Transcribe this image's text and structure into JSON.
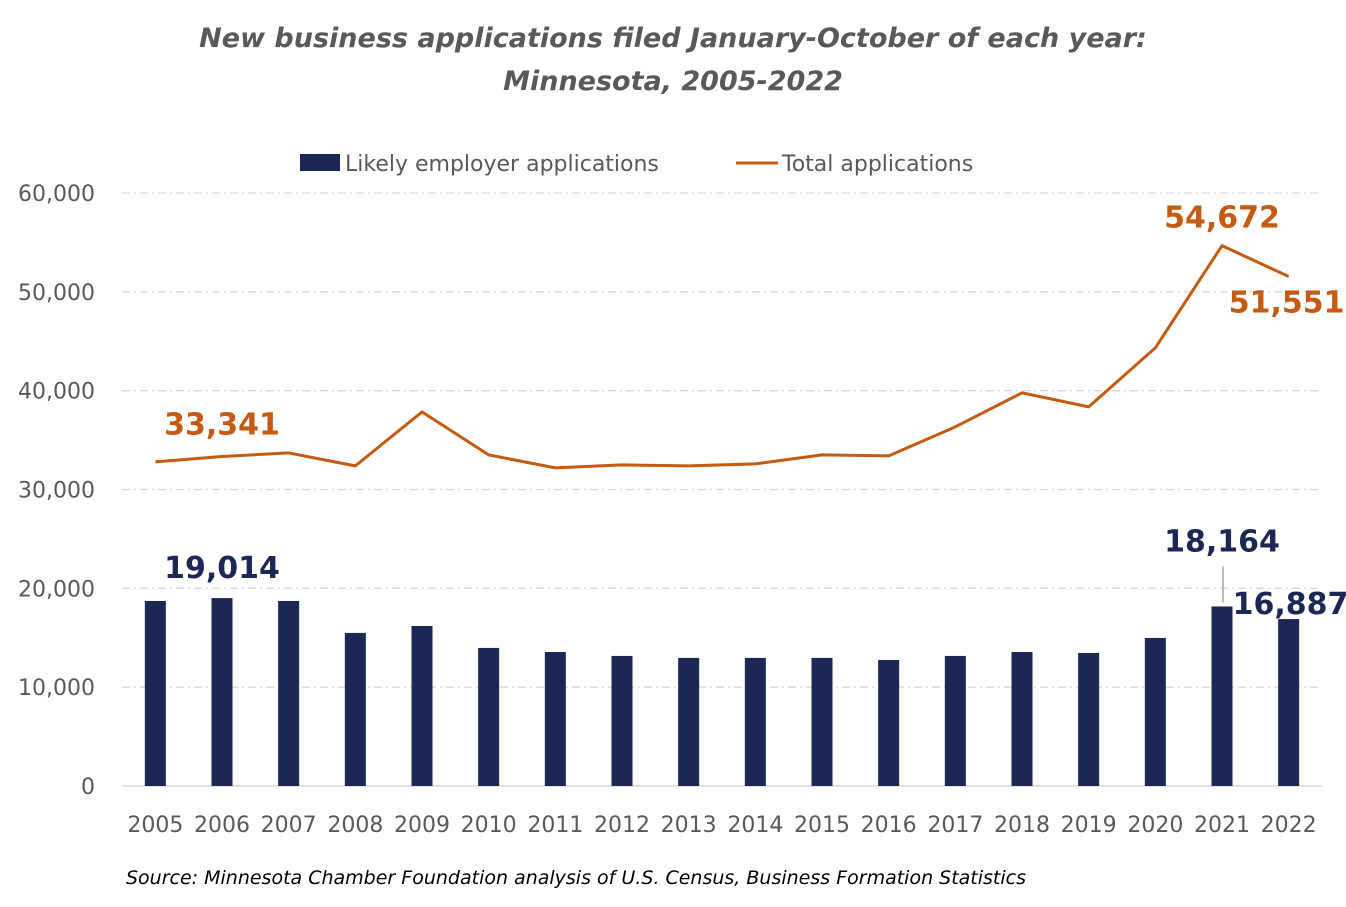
{
  "chart_data": {
    "type": "bar+line",
    "title": "New business applications filed January-October of each year:",
    "subtitle": "Minnesota, 2005-2022",
    "source": "Source: Minnesota Chamber Foundation analysis of U.S. Census, Business Formation Statistics",
    "categories": [
      "2005",
      "2006",
      "2007",
      "2008",
      "2009",
      "2010",
      "2011",
      "2012",
      "2013",
      "2014",
      "2015",
      "2016",
      "2017",
      "2018",
      "2019",
      "2020",
      "2021",
      "2022"
    ],
    "ylim": [
      0,
      60000
    ],
    "yticks": [
      "0",
      "10,000",
      "20,000",
      "30,000",
      "40,000",
      "50,000",
      "60,000"
    ],
    "grid": true,
    "legend_placement": "top",
    "series": [
      {
        "name": "Likely employer applications",
        "type": "bar",
        "color": "#1b2754",
        "values": [
          18720,
          19014,
          18720,
          15490,
          16190,
          13970,
          13560,
          13160,
          12960,
          12960,
          12960,
          12750,
          13160,
          13560,
          13460,
          14980,
          18164,
          16887
        ]
      },
      {
        "name": "Total applications",
        "type": "line",
        "color": "#c55a11",
        "values": [
          32790,
          33341,
          33700,
          32390,
          37850,
          33500,
          32190,
          32490,
          32390,
          32590,
          33500,
          33400,
          36340,
          39780,
          38360,
          44330,
          54672,
          51551
        ]
      }
    ],
    "annotations": [
      {
        "text": "33,341",
        "series": 1,
        "category": "2006"
      },
      {
        "text": "54,672",
        "series": 1,
        "category": "2021"
      },
      {
        "text": "51,551",
        "series": 1,
        "category": "2022"
      },
      {
        "text": "19,014",
        "series": 0,
        "category": "2006"
      },
      {
        "text": "18,164",
        "series": 0,
        "category": "2021"
      },
      {
        "text": "16,887",
        "series": 0,
        "category": "2022"
      }
    ]
  }
}
